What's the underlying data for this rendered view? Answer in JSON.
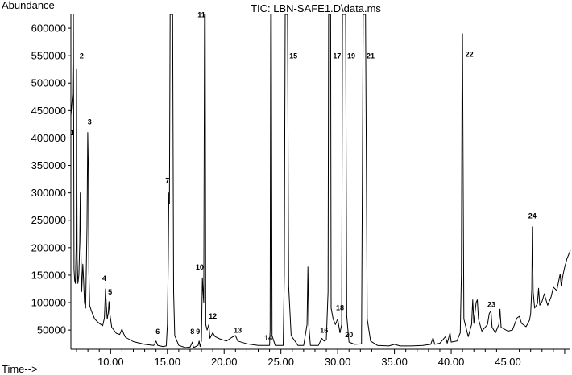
{
  "chart_data": {
    "type": "line",
    "title": "TIC: LBN-SAFE1.D\\data.ms",
    "ylabel": "Abundance",
    "xlabel": "Time-->",
    "xlim": [
      6.5,
      50.5
    ],
    "ylim": [
      15000,
      625000
    ],
    "xticks": [
      {
        "value": 10,
        "label": "10.00"
      },
      {
        "value": 15,
        "label": "15.00"
      },
      {
        "value": 20,
        "label": "20.00"
      },
      {
        "value": 25,
        "label": "25.00"
      },
      {
        "value": 30,
        "label": "30.00"
      },
      {
        "value": 35,
        "label": "35.00"
      },
      {
        "value": 40,
        "label": "40.00"
      },
      {
        "value": 45,
        "label": "45.00"
      }
    ],
    "yticks": [
      {
        "value": 50000,
        "label": "50000"
      },
      {
        "value": 100000,
        "label": "100000"
      },
      {
        "value": 150000,
        "label": "150000"
      },
      {
        "value": 200000,
        "label": "200000"
      },
      {
        "value": 250000,
        "label": "250000"
      },
      {
        "value": 300000,
        "label": "300000"
      },
      {
        "value": 350000,
        "label": "350000"
      },
      {
        "value": 400000,
        "label": "400000"
      },
      {
        "value": 450000,
        "label": "450000"
      },
      {
        "value": 500000,
        "label": "500000"
      },
      {
        "value": 550000,
        "label": "550000"
      },
      {
        "value": 600000,
        "label": "600000"
      }
    ],
    "series": [
      {
        "color": "#000000",
        "points": [
          [
            6.5,
            440000
          ],
          [
            6.65,
            480000
          ],
          [
            6.72,
            625000
          ],
          [
            6.78,
            160000
          ],
          [
            6.83,
            140000
          ],
          [
            6.9,
            135000
          ],
          [
            6.96,
            200000
          ],
          [
            7.0,
            525000
          ],
          [
            7.05,
            180000
          ],
          [
            7.12,
            135000
          ],
          [
            7.2,
            150000
          ],
          [
            7.28,
            210000
          ],
          [
            7.33,
            300000
          ],
          [
            7.38,
            200000
          ],
          [
            7.45,
            120000
          ],
          [
            7.55,
            170000
          ],
          [
            7.62,
            140000
          ],
          [
            7.7,
            100000
          ],
          [
            7.8,
            90000
          ],
          [
            7.92,
            240000
          ],
          [
            7.98,
            410000
          ],
          [
            8.03,
            350000
          ],
          [
            8.08,
            160000
          ],
          [
            8.15,
            95000
          ],
          [
            8.3,
            85000
          ],
          [
            8.6,
            70000
          ],
          [
            9.0,
            62000
          ],
          [
            9.3,
            58000
          ],
          [
            9.45,
            72000
          ],
          [
            9.55,
            125000
          ],
          [
            9.62,
            95000
          ],
          [
            9.7,
            70000
          ],
          [
            9.8,
            82000
          ],
          [
            9.86,
            102000
          ],
          [
            9.93,
            80000
          ],
          [
            10.1,
            55000
          ],
          [
            10.5,
            44000
          ],
          [
            10.8,
            42000
          ],
          [
            11.0,
            52000
          ],
          [
            11.1,
            46000
          ],
          [
            11.3,
            37000
          ],
          [
            12.0,
            29000
          ],
          [
            13.0,
            24000
          ],
          [
            13.8,
            22000
          ],
          [
            14.0,
            30000
          ],
          [
            14.15,
            22000
          ],
          [
            14.6,
            20000
          ],
          [
            14.9,
            21000
          ],
          [
            15.0,
            60000
          ],
          [
            15.08,
            180000
          ],
          [
            15.13,
            300000
          ],
          [
            15.18,
            280000
          ],
          [
            15.24,
            625000
          ],
          [
            15.46,
            625000
          ],
          [
            15.55,
            120000
          ],
          [
            15.65,
            40000
          ],
          [
            16.0,
            22000
          ],
          [
            16.6,
            18000
          ],
          [
            17.0,
            19000
          ],
          [
            17.2,
            28000
          ],
          [
            17.3,
            18000
          ],
          [
            17.7,
            22000
          ],
          [
            17.8,
            30000
          ],
          [
            17.88,
            20000
          ],
          [
            18.0,
            30000
          ],
          [
            18.08,
            145000
          ],
          [
            18.12,
            130000
          ],
          [
            18.2,
            100000
          ],
          [
            18.27,
            625000
          ],
          [
            18.33,
            625000
          ],
          [
            18.38,
            60000
          ],
          [
            18.5,
            50000
          ],
          [
            18.65,
            60000
          ],
          [
            18.75,
            35000
          ],
          [
            19.0,
            45000
          ],
          [
            19.2,
            38000
          ],
          [
            19.6,
            34000
          ],
          [
            20.2,
            30000
          ],
          [
            20.7,
            37000
          ],
          [
            21.0,
            40000
          ],
          [
            21.2,
            30000
          ],
          [
            22.0,
            25000
          ],
          [
            23.0,
            22000
          ],
          [
            24.0,
            22000
          ],
          [
            24.05,
            50000
          ],
          [
            24.1,
            625000
          ],
          [
            24.16,
            625000
          ],
          [
            24.22,
            40000
          ],
          [
            24.5,
            22000
          ],
          [
            25.2,
            22000
          ],
          [
            25.3,
            150000
          ],
          [
            25.38,
            625000
          ],
          [
            25.58,
            625000
          ],
          [
            25.68,
            130000
          ],
          [
            25.9,
            40000
          ],
          [
            26.5,
            22000
          ],
          [
            27.0,
            22000
          ],
          [
            27.3,
            60000
          ],
          [
            27.38,
            165000
          ],
          [
            27.45,
            60000
          ],
          [
            27.6,
            22000
          ],
          [
            28.3,
            22000
          ],
          [
            28.6,
            35000
          ],
          [
            28.8,
            30000
          ],
          [
            29.0,
            32000
          ],
          [
            29.15,
            120000
          ],
          [
            29.2,
            625000
          ],
          [
            29.38,
            625000
          ],
          [
            29.42,
            90000
          ],
          [
            29.6,
            70000
          ],
          [
            29.8,
            60000
          ],
          [
            30.0,
            70000
          ],
          [
            30.2,
            45000
          ],
          [
            30.35,
            60000
          ],
          [
            30.42,
            625000
          ],
          [
            30.7,
            625000
          ],
          [
            30.8,
            75000
          ],
          [
            31.0,
            28000
          ],
          [
            31.5,
            24000
          ],
          [
            32.1,
            25000
          ],
          [
            32.25,
            625000
          ],
          [
            32.45,
            625000
          ],
          [
            32.6,
            70000
          ],
          [
            32.9,
            30000
          ],
          [
            33.5,
            22000
          ],
          [
            34.5,
            21000
          ],
          [
            35.0,
            24000
          ],
          [
            35.5,
            21000
          ],
          [
            36.5,
            21000
          ],
          [
            37.5,
            22000
          ],
          [
            38.2,
            24000
          ],
          [
            38.4,
            36000
          ],
          [
            38.55,
            24000
          ],
          [
            39.0,
            26000
          ],
          [
            39.5,
            38000
          ],
          [
            39.65,
            26000
          ],
          [
            39.9,
            45000
          ],
          [
            40.0,
            28000
          ],
          [
            40.5,
            30000
          ],
          [
            40.8,
            45000
          ],
          [
            40.9,
            150000
          ],
          [
            40.96,
            540000
          ],
          [
            41.0,
            590000
          ],
          [
            41.06,
            300000
          ],
          [
            41.12,
            70000
          ],
          [
            41.5,
            38000
          ],
          [
            41.8,
            60000
          ],
          [
            41.9,
            105000
          ],
          [
            42.0,
            62000
          ],
          [
            42.2,
            100000
          ],
          [
            42.3,
            105000
          ],
          [
            42.4,
            70000
          ],
          [
            42.7,
            48000
          ],
          [
            43.2,
            60000
          ],
          [
            43.35,
            80000
          ],
          [
            43.5,
            85000
          ],
          [
            43.6,
            55000
          ],
          [
            43.9,
            45000
          ],
          [
            44.2,
            60000
          ],
          [
            44.3,
            88000
          ],
          [
            44.4,
            55000
          ],
          [
            45.0,
            48000
          ],
          [
            45.4,
            50000
          ],
          [
            45.8,
            72000
          ],
          [
            46.0,
            75000
          ],
          [
            46.2,
            62000
          ],
          [
            46.6,
            56000
          ],
          [
            46.9,
            68000
          ],
          [
            47.0,
            80000
          ],
          [
            47.1,
            125000
          ],
          [
            47.15,
            238000
          ],
          [
            47.22,
            120000
          ],
          [
            47.35,
            90000
          ],
          [
            47.6,
            98000
          ],
          [
            47.7,
            126000
          ],
          [
            47.8,
            95000
          ],
          [
            48.0,
            102000
          ],
          [
            48.2,
            116000
          ],
          [
            48.5,
            95000
          ],
          [
            48.8,
            110000
          ],
          [
            49.0,
            128000
          ],
          [
            49.3,
            122000
          ],
          [
            49.6,
            152000
          ],
          [
            49.7,
            130000
          ],
          [
            49.85,
            150000
          ],
          [
            50.0,
            165000
          ],
          [
            50.2,
            180000
          ],
          [
            50.5,
            195000
          ]
        ]
      }
    ],
    "peak_labels": [
      {
        "label": "1",
        "x": 6.6,
        "y": 405000
      },
      {
        "label": "2",
        "x": 7.45,
        "y": 545000
      },
      {
        "label": "3",
        "x": 8.15,
        "y": 425000
      },
      {
        "label": "4",
        "x": 9.45,
        "y": 140000
      },
      {
        "label": "5",
        "x": 9.95,
        "y": 115000
      },
      {
        "label": "6",
        "x": 14.15,
        "y": 43000
      },
      {
        "label": "7",
        "x": 15.0,
        "y": 318000
      },
      {
        "label": "8",
        "x": 17.2,
        "y": 43000
      },
      {
        "label": "9",
        "x": 17.7,
        "y": 43000
      },
      {
        "label": "10",
        "x": 17.85,
        "y": 160000
      },
      {
        "label": "11",
        "x": 18.0,
        "y": 620000
      },
      {
        "label": "12",
        "x": 19.0,
        "y": 71000
      },
      {
        "label": "13",
        "x": 21.2,
        "y": 45000
      },
      {
        "label": "14",
        "x": 23.9,
        "y": 31000
      },
      {
        "label": "15",
        "x": 26.1,
        "y": 545000
      },
      {
        "label": "16",
        "x": 28.8,
        "y": 45000
      },
      {
        "label": "17",
        "x": 29.95,
        "y": 545000
      },
      {
        "label": "18",
        "x": 30.2,
        "y": 86000
      },
      {
        "label": "19",
        "x": 31.2,
        "y": 545000
      },
      {
        "label": "20",
        "x": 31.0,
        "y": 37000
      },
      {
        "label": "21",
        "x": 32.9,
        "y": 545000
      },
      {
        "label": "22",
        "x": 41.6,
        "y": 548000
      },
      {
        "label": "23",
        "x": 43.55,
        "y": 92000
      },
      {
        "label": "24",
        "x": 47.15,
        "y": 253000
      }
    ]
  }
}
